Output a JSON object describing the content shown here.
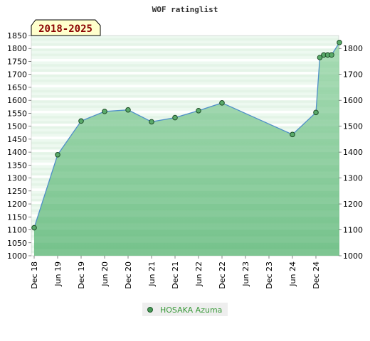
{
  "chart_data": {
    "type": "area",
    "title": "WOF ratinglist",
    "period_badge": "2018-2025",
    "xlabel": "",
    "ylabel": "",
    "x_tick_labels": [
      "Dec 18",
      "Jun 19",
      "Dec 19",
      "Jun 20",
      "Dec 20",
      "Jun 21",
      "Dec 21",
      "Jun 22",
      "Dec 22",
      "Jun 23",
      "Dec 23",
      "Jun 24",
      "Dec 24"
    ],
    "y_left_ticks": [
      1000,
      1050,
      1100,
      1150,
      1200,
      1250,
      1300,
      1350,
      1400,
      1450,
      1500,
      1550,
      1600,
      1650,
      1700,
      1750,
      1800,
      1850
    ],
    "y_left_lim": [
      1000,
      1850
    ],
    "y_right_ticks": [
      1000,
      1100,
      1200,
      1300,
      1400,
      1500,
      1600,
      1700,
      1800
    ],
    "grid": true,
    "legend_position": "bottom-center",
    "series": [
      {
        "name": "HOSAKA Azuma",
        "color": "#4a9a5a",
        "points": [
          {
            "date": "2018-12",
            "value": 1108
          },
          {
            "date": "2019-06",
            "value": 1390
          },
          {
            "date": "2019-12",
            "value": 1520
          },
          {
            "date": "2020-06",
            "value": 1557
          },
          {
            "date": "2020-12",
            "value": 1563
          },
          {
            "date": "2021-06",
            "value": 1517
          },
          {
            "date": "2021-12",
            "value": 1533
          },
          {
            "date": "2022-06",
            "value": 1560
          },
          {
            "date": "2022-12",
            "value": 1590
          },
          {
            "date": "2024-06",
            "value": 1468
          },
          {
            "date": "2024-12",
            "value": 1553
          },
          {
            "date": "2025-01",
            "value": 1765
          },
          {
            "date": "2025-02",
            "value": 1775
          },
          {
            "date": "2025-03",
            "value": 1775
          },
          {
            "date": "2025-04",
            "value": 1775
          },
          {
            "date": "2025-06",
            "value": 1823
          }
        ]
      }
    ]
  }
}
